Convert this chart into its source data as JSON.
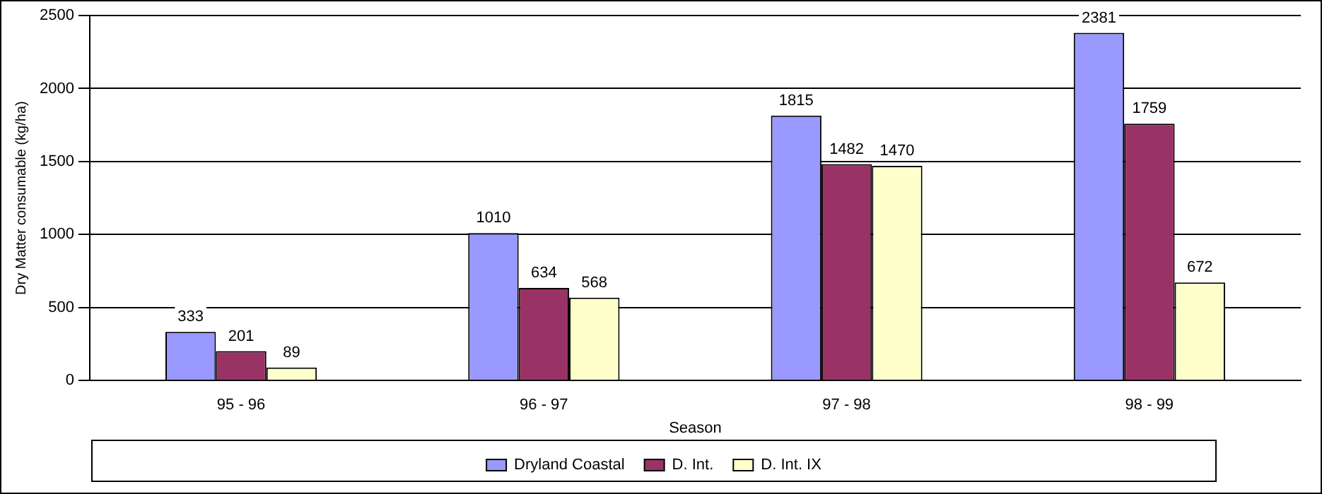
{
  "chart_data": {
    "type": "bar",
    "xlabel": "Season",
    "ylabel": "Dry Matter consumable (kg/ha)",
    "categories": [
      "95 - 96",
      "96 - 97",
      "97 - 98",
      "98 - 99"
    ],
    "series": [
      {
        "name": "Dryland Coastal",
        "color": "#9999ff",
        "values": [
          333,
          1010,
          1815,
          2381
        ]
      },
      {
        "name": "D. Int.",
        "color": "#993366",
        "values": [
          201,
          634,
          1482,
          1759
        ]
      },
      {
        "name": "D. Int. IX",
        "color": "#ffffcc",
        "values": [
          89,
          568,
          1470,
          672
        ]
      }
    ],
    "ylim": [
      0,
      2500
    ],
    "yticks": [
      0,
      500,
      1000,
      1500,
      2000,
      2500
    ],
    "grid": "y",
    "legend": "bottom",
    "data_labels": true
  }
}
